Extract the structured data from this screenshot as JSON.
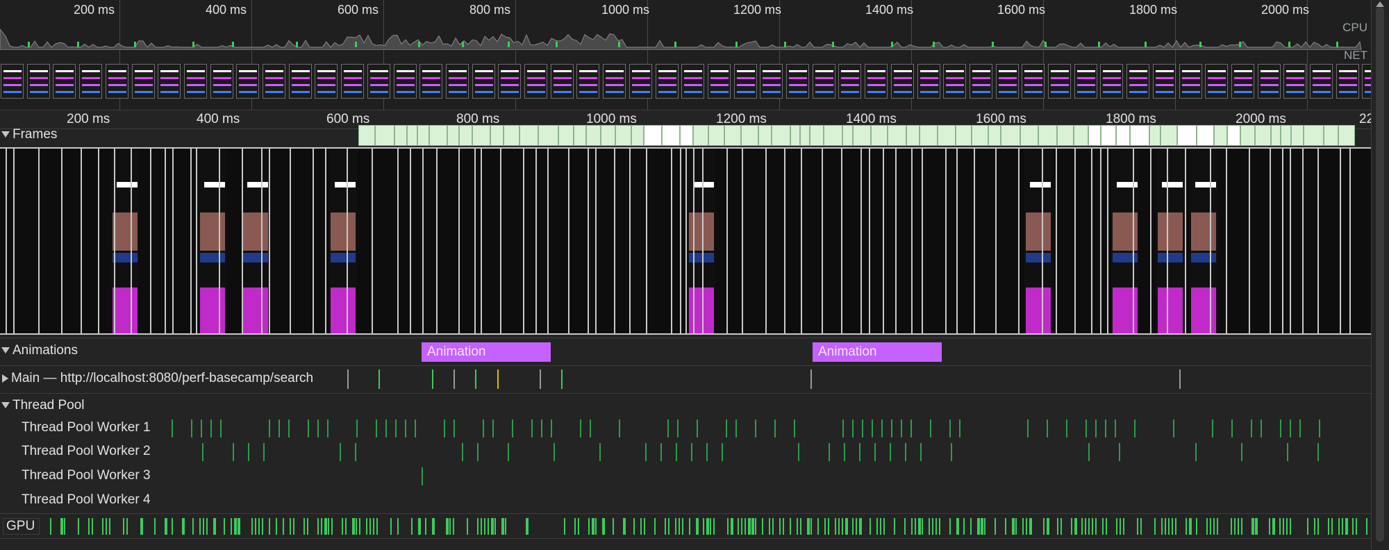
{
  "overview": {
    "time_ticks": [
      "200 ms",
      "400 ms",
      "600 ms",
      "800 ms",
      "1000 ms",
      "1200 ms",
      "1400 ms",
      "1600 ms",
      "1800 ms",
      "2000 ms"
    ],
    "cpu_label": "CPU",
    "net_label": "NET"
  },
  "ruler": {
    "time_ticks": [
      "200 ms",
      "400 ms",
      "600 ms",
      "800 ms",
      "1000 ms",
      "1200 ms",
      "1400 ms",
      "1600 ms",
      "1800 ms",
      "2000 ms",
      "22"
    ]
  },
  "tracks": {
    "frames": {
      "label": "Frames"
    },
    "animations": {
      "label": "Animations",
      "items": [
        "Animation",
        "Animation"
      ]
    },
    "main": {
      "label": "Main — http://localhost:8080/perf-basecamp/search"
    },
    "thread_pool": {
      "label": "Thread Pool",
      "workers": [
        "Thread Pool Worker 1",
        "Thread Pool Worker 2",
        "Thread Pool Worker 3",
        "Thread Pool Worker 4"
      ]
    },
    "gpu": {
      "label": "GPU"
    }
  },
  "colors": {
    "background": "#242424",
    "frame_box": "#d9f2d6",
    "animation": "#c561ff",
    "gpu_event": "#3ccc5a",
    "worker_event": "#2a9d4a",
    "main_event_highlight": "#e6b800"
  },
  "icons": {
    "collapse": "triangle-down-icon",
    "expand": "triangle-right-icon"
  }
}
